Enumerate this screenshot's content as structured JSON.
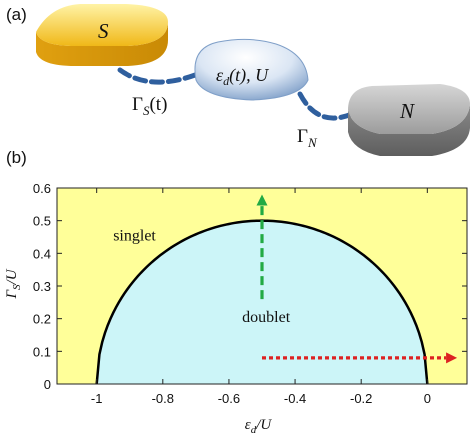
{
  "panels": {
    "a": {
      "label": "(a)"
    },
    "b": {
      "label": "(b)"
    }
  },
  "schematic": {
    "superconductor": {
      "letter": "S"
    },
    "dot": {
      "label_prefix": "ε",
      "label_sub": "d",
      "label_suffix": "(t), U"
    },
    "normal_lead": {
      "letter": "N"
    },
    "coupling_s": {
      "label_prefix": "Γ",
      "label_sub": "S",
      "label_suffix": "(t)"
    },
    "coupling_n": {
      "label_prefix": "Γ",
      "label_sub": "N"
    }
  },
  "colors": {
    "superconductor": "#f2c12e",
    "dot": "#c9d9ee",
    "normal": "#9a9a9a",
    "link": "#2f5f9e",
    "singlet_region": "#ffff99",
    "doublet_region": "#ccf5f8",
    "boundary": "#000000",
    "arrow_vertical": "#22aa44",
    "arrow_horizontal": "#dd2222"
  },
  "chart_data": {
    "type": "area",
    "xlabel": {
      "prefix": "ε",
      "sub": "d",
      "suffix": "/U"
    },
    "ylabel": {
      "prefix": "Γ",
      "sub": "S",
      "suffix": "/U"
    },
    "xlim": [
      -1.12,
      0.12
    ],
    "ylim": [
      0,
      0.6
    ],
    "xticks": [
      -1,
      -0.8,
      -0.6,
      -0.4,
      -0.2,
      0
    ],
    "xtick_labels": [
      "-1",
      "-0.8",
      "-0.6",
      "-0.4",
      "-0.2",
      "0"
    ],
    "yticks": [
      0,
      0.1,
      0.2,
      0.3,
      0.4,
      0.5,
      0.6
    ],
    "ytick_labels": [
      "0",
      "0.1",
      "0.2",
      "0.3",
      "0.4",
      "0.5",
      "0.6"
    ],
    "regions": [
      {
        "name": "singlet",
        "label": "singlet",
        "x": -0.95,
        "y": 0.44
      },
      {
        "name": "doublet",
        "label": "doublet",
        "x": -0.56,
        "y": 0.19
      }
    ],
    "boundary": {
      "shape": "semicircle",
      "center_x": -0.5,
      "radius_x": 0.5,
      "height": 0.5,
      "x": [
        -1,
        -0.99,
        -0.95,
        -0.9,
        -0.8,
        -0.7,
        -0.6,
        -0.5,
        -0.4,
        -0.3,
        -0.2,
        -0.1,
        -0.05,
        -0.01,
        0
      ],
      "y": [
        0,
        0.07,
        0.218,
        0.3,
        0.4,
        0.458,
        0.49,
        0.5,
        0.49,
        0.458,
        0.4,
        0.3,
        0.218,
        0.07,
        0
      ]
    },
    "arrows": [
      {
        "name": "vertical",
        "from": [
          -0.5,
          0.26
        ],
        "to": [
          -0.5,
          0.58
        ],
        "style": "dashed"
      },
      {
        "name": "horizontal",
        "from": [
          -0.5,
          0.08
        ],
        "to": [
          0.09,
          0.08
        ],
        "style": "dotted"
      }
    ],
    "grid": false
  }
}
